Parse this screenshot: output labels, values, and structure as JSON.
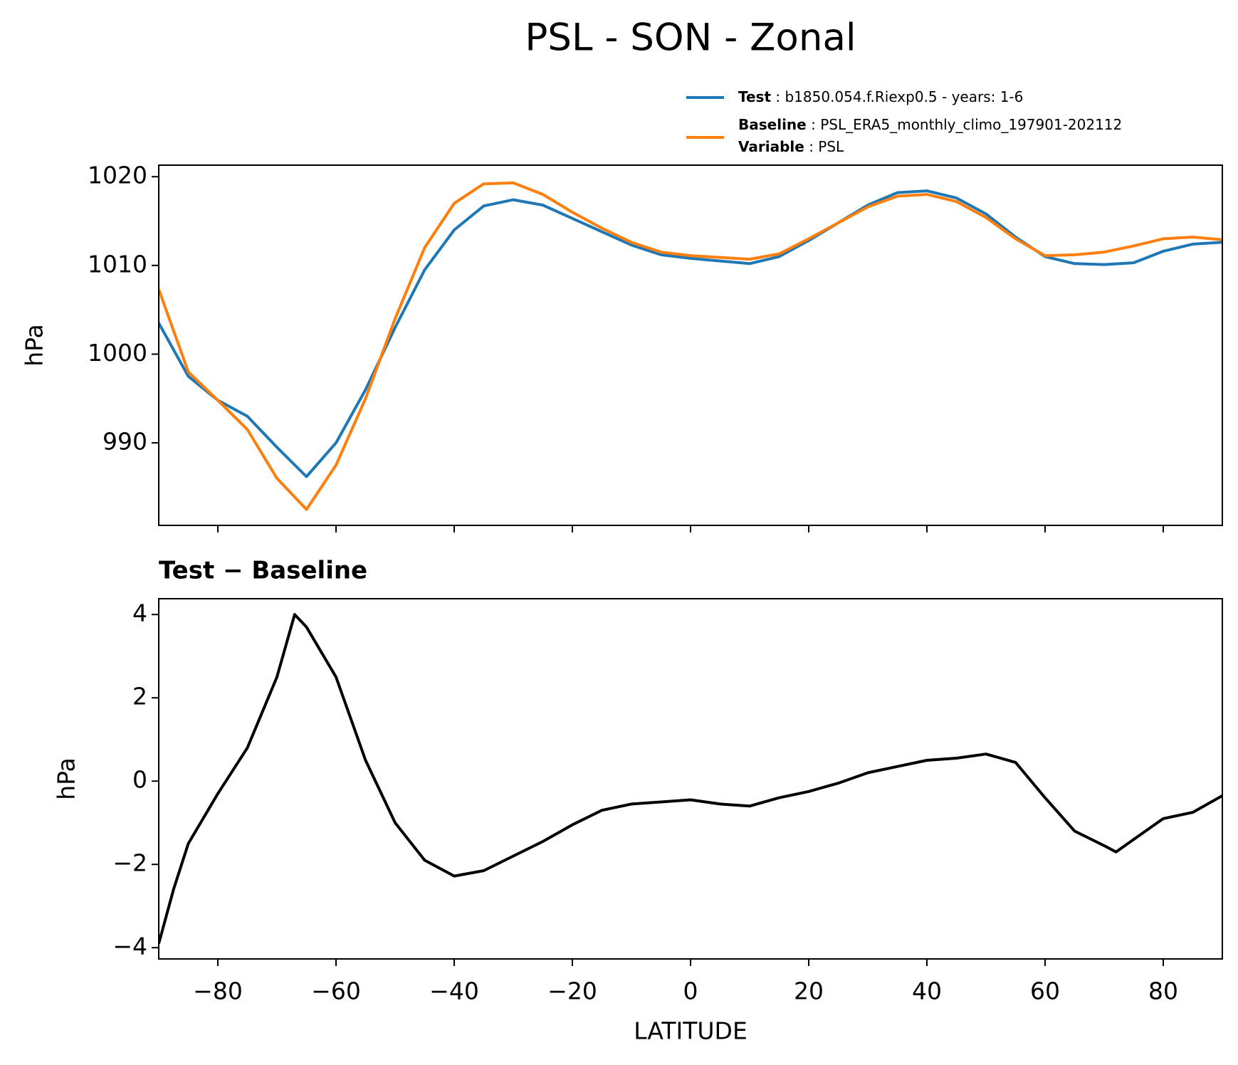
{
  "chart_data": [
    {
      "type": "line",
      "title": "PSL - SON - Zonal",
      "ylabel": "hPa",
      "x": [
        -90,
        -85,
        -80,
        -75,
        -70,
        -65,
        -60,
        -55,
        -50,
        -45,
        -40,
        -35,
        -30,
        -25,
        -20,
        -15,
        -10,
        -5,
        0,
        5,
        10,
        15,
        20,
        25,
        30,
        35,
        40,
        45,
        50,
        55,
        60,
        65,
        70,
        75,
        80,
        85,
        90
      ],
      "series": [
        {
          "name": "Test",
          "description": "b1850.054.f.Riexp0.5 - years: 1-6",
          "color": "#1f77b4",
          "values": [
            1003.5,
            997.5,
            994.8,
            993,
            989.5,
            986.2,
            990,
            996,
            1003,
            1009.5,
            1014,
            1016.7,
            1017.4,
            1016.8,
            1015.3,
            1013.8,
            1012.3,
            1011.2,
            1010.8,
            1010.5,
            1010.2,
            1011,
            1012.8,
            1014.8,
            1016.8,
            1018.2,
            1018.4,
            1017.6,
            1015.8,
            1013.2,
            1011,
            1010.2,
            1010.1,
            1010.3,
            1011.6,
            1012.4,
            1012.6
          ]
        },
        {
          "name": "Baseline",
          "description": "PSL_ERA5_monthly_climo_197901-202112",
          "color": "#ff7f0e",
          "values": [
            1007.3,
            998,
            994.8,
            991.5,
            986,
            982.5,
            987.5,
            995,
            1004,
            1012,
            1017,
            1019.2,
            1019.3,
            1018,
            1016,
            1014.2,
            1012.6,
            1011.5,
            1011.1,
            1010.9,
            1010.7,
            1011.3,
            1013,
            1014.8,
            1016.6,
            1017.8,
            1018,
            1017.2,
            1015.4,
            1013,
            1011.1,
            1011.2,
            1011.5,
            1012.2,
            1013,
            1013.2,
            1012.9
          ]
        }
      ],
      "legend_extra": {
        "name": "Variable",
        "description": "PSL"
      },
      "xlim": [
        -90,
        90
      ],
      "xticks": [
        -80,
        -60,
        -40,
        -20,
        0,
        20,
        40,
        60,
        80
      ],
      "ylim": [
        980.7,
        1021.3
      ],
      "yticks": [
        990,
        1000,
        1010,
        1020
      ]
    },
    {
      "type": "line",
      "title": "Test − Baseline",
      "ylabel": "hPa",
      "xlabel": "LATITUDE",
      "x": [
        -90,
        -87.5,
        -85,
        -80,
        -75,
        -70,
        -67,
        -65,
        -60,
        -55,
        -50,
        -45,
        -40,
        -35,
        -30,
        -25,
        -20,
        -15,
        -10,
        -5,
        0,
        5,
        10,
        15,
        20,
        25,
        30,
        35,
        40,
        45,
        50,
        55,
        60,
        65,
        70,
        72,
        75,
        80,
        85,
        90
      ],
      "series": [
        {
          "color": "#000000",
          "values": [
            -3.9,
            -2.6,
            -1.5,
            -0.3,
            0.8,
            2.5,
            4.0,
            3.7,
            2.5,
            0.5,
            -1.0,
            -1.9,
            -2.28,
            -2.15,
            -1.8,
            -1.45,
            -1.05,
            -0.7,
            -0.55,
            -0.5,
            -0.45,
            -0.55,
            -0.6,
            -0.4,
            -0.25,
            -0.05,
            0.2,
            0.35,
            0.5,
            0.55,
            0.65,
            0.45,
            -0.4,
            -1.2,
            -1.55,
            -1.7,
            -1.4,
            -0.9,
            -0.75,
            -0.35
          ]
        }
      ],
      "xlim": [
        -90,
        90
      ],
      "xticks": [
        {
          "value": -80,
          "label": "−80"
        },
        {
          "value": -60,
          "label": "−60"
        },
        {
          "value": -40,
          "label": "−40"
        },
        {
          "value": -20,
          "label": "−20"
        },
        0,
        20,
        40,
        60,
        80
      ],
      "ylim": [
        -4.27,
        4.38
      ],
      "yticks": [
        {
          "value": -4,
          "label": "−4"
        },
        {
          "value": -2,
          "label": "−2"
        },
        0,
        2,
        4
      ]
    }
  ]
}
